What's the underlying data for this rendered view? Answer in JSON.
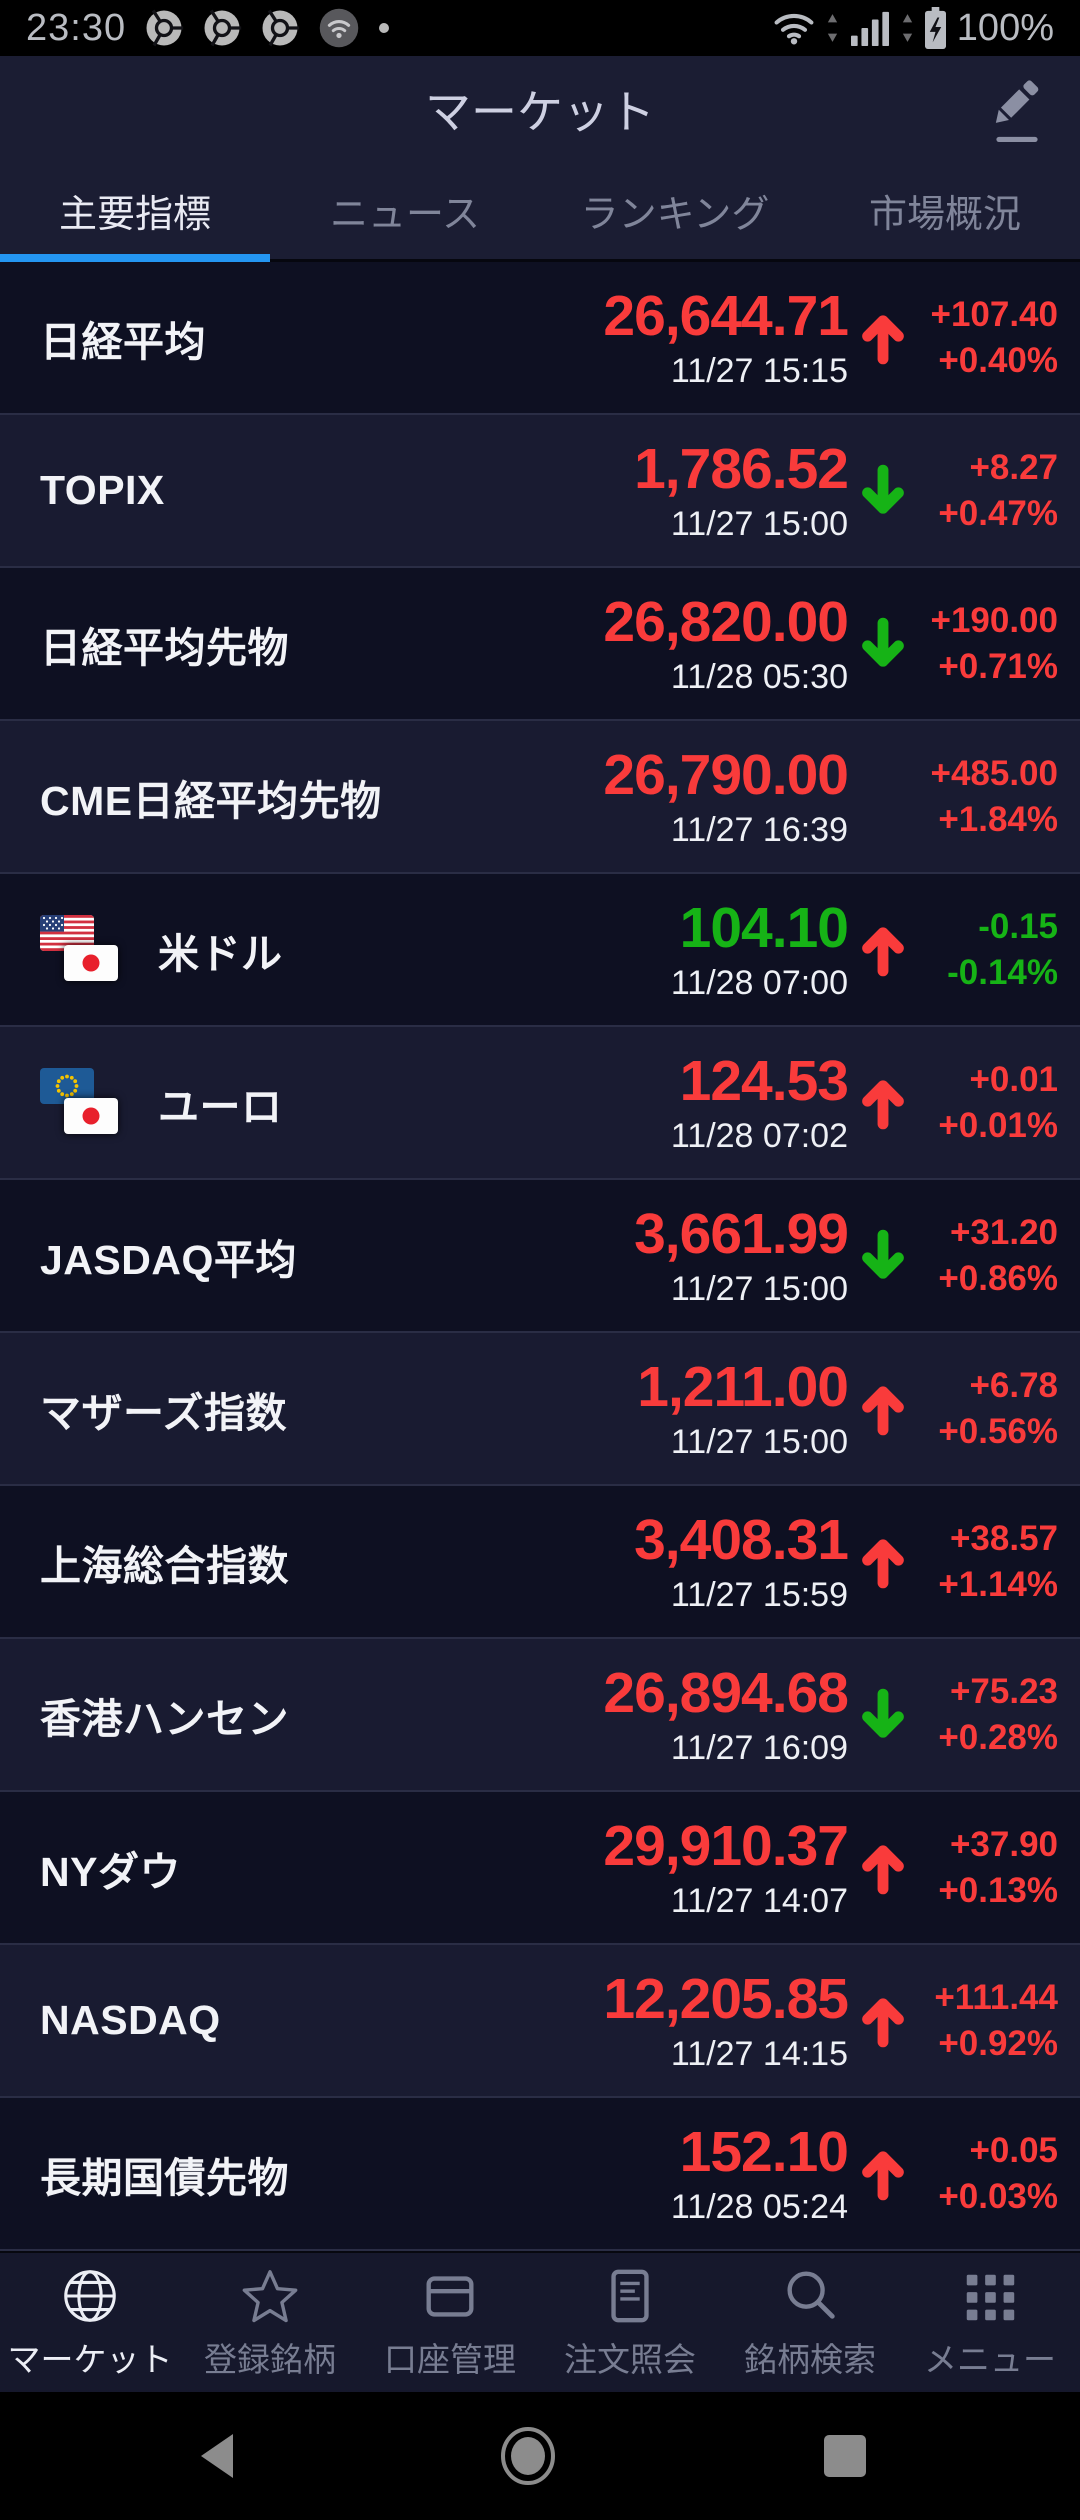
{
  "colors": {
    "accent_blue": "#2496f2",
    "up_red": "#f93b3b",
    "down_green": "#16b316",
    "row_odd_bg": "#0e1022",
    "row_even_bg": "#191b31",
    "header_bg": "#1b1d33"
  },
  "status_bar": {
    "time": "23:30",
    "battery_percent": "100%",
    "left_icons": [
      "chrome-icon",
      "chrome-icon",
      "chrome-icon",
      "wifi-circle-icon",
      "notification-dot"
    ],
    "right_icons": [
      "wifi-icon",
      "signal-bars-icon",
      "battery-charging-icon"
    ]
  },
  "header": {
    "title": "マーケット",
    "edit_icon": "pencil-icon"
  },
  "tabs": {
    "items": [
      {
        "label": "主要指標",
        "active": true
      },
      {
        "label": "ニュース",
        "active": false
      },
      {
        "label": "ランキング",
        "active": false
      },
      {
        "label": "市場概況",
        "active": false
      }
    ]
  },
  "rows": [
    {
      "label": "日経平均",
      "flags": null,
      "value": "26,644.71",
      "value_color": "red",
      "arrow": "up",
      "arrow_color": "red",
      "change": "+107.40",
      "change_pct": "+0.40%",
      "change_color": "red",
      "timestamp": "11/27 15:15"
    },
    {
      "label": "TOPIX",
      "flags": null,
      "value": "1,786.52",
      "value_color": "red",
      "arrow": "down",
      "arrow_color": "green",
      "change": "+8.27",
      "change_pct": "+0.47%",
      "change_color": "red",
      "timestamp": "11/27 15:00"
    },
    {
      "label": "日経平均先物",
      "flags": null,
      "value": "26,820.00",
      "value_color": "red",
      "arrow": "down",
      "arrow_color": "green",
      "change": "+190.00",
      "change_pct": "+0.71%",
      "change_color": "red",
      "timestamp": "11/28 05:30"
    },
    {
      "label": "CME日経平均先物",
      "flags": null,
      "value": "26,790.00",
      "value_color": "red",
      "arrow": "none",
      "arrow_color": "",
      "change": "+485.00",
      "change_pct": "+1.84%",
      "change_color": "red",
      "timestamp": "11/27 16:39"
    },
    {
      "label": "米ドル",
      "flags": [
        "us",
        "jp"
      ],
      "value": "104.10",
      "value_color": "green",
      "arrow": "up",
      "arrow_color": "red",
      "change": "-0.15",
      "change_pct": "-0.14%",
      "change_color": "green",
      "timestamp": "11/28 07:00"
    },
    {
      "label": "ユーロ",
      "flags": [
        "eu",
        "jp"
      ],
      "value": "124.53",
      "value_color": "red",
      "arrow": "up",
      "arrow_color": "red",
      "change": "+0.01",
      "change_pct": "+0.01%",
      "change_color": "red",
      "timestamp": "11/28 07:02"
    },
    {
      "label": "JASDAQ平均",
      "flags": null,
      "value": "3,661.99",
      "value_color": "red",
      "arrow": "down",
      "arrow_color": "green",
      "change": "+31.20",
      "change_pct": "+0.86%",
      "change_color": "red",
      "timestamp": "11/27 15:00"
    },
    {
      "label": "マザーズ指数",
      "flags": null,
      "value": "1,211.00",
      "value_color": "red",
      "arrow": "up",
      "arrow_color": "red",
      "change": "+6.78",
      "change_pct": "+0.56%",
      "change_color": "red",
      "timestamp": "11/27 15:00"
    },
    {
      "label": "上海総合指数",
      "flags": null,
      "value": "3,408.31",
      "value_color": "red",
      "arrow": "up",
      "arrow_color": "red",
      "change": "+38.57",
      "change_pct": "+1.14%",
      "change_color": "red",
      "timestamp": "11/27 15:59"
    },
    {
      "label": "香港ハンセン",
      "flags": null,
      "value": "26,894.68",
      "value_color": "red",
      "arrow": "down",
      "arrow_color": "green",
      "change": "+75.23",
      "change_pct": "+0.28%",
      "change_color": "red",
      "timestamp": "11/27 16:09"
    },
    {
      "label": "NYダウ",
      "flags": null,
      "value": "29,910.37",
      "value_color": "red",
      "arrow": "up",
      "arrow_color": "red",
      "change": "+37.90",
      "change_pct": "+0.13%",
      "change_color": "red",
      "timestamp": "11/27 14:07"
    },
    {
      "label": "NASDAQ",
      "flags": null,
      "value": "12,205.85",
      "value_color": "red",
      "arrow": "up",
      "arrow_color": "red",
      "change": "+111.44",
      "change_pct": "+0.92%",
      "change_color": "red",
      "timestamp": "11/27 14:15"
    },
    {
      "label": "長期国債先物",
      "flags": null,
      "value": "152.10",
      "value_color": "red",
      "arrow": "up",
      "arrow_color": "red",
      "change": "+0.05",
      "change_pct": "+0.03%",
      "change_color": "red",
      "timestamp": "11/28 05:24"
    }
  ],
  "bottom_nav": {
    "items": [
      {
        "label": "マーケット",
        "icon": "globe-icon",
        "active": true
      },
      {
        "label": "登録銘柄",
        "icon": "star-icon",
        "active": false
      },
      {
        "label": "口座管理",
        "icon": "card-icon",
        "active": false
      },
      {
        "label": "注文照会",
        "icon": "document-icon",
        "active": false
      },
      {
        "label": "銘柄検索",
        "icon": "search-icon",
        "active": false
      },
      {
        "label": "メニュー",
        "icon": "grid-icon",
        "active": false
      }
    ]
  },
  "android_nav": {
    "buttons": [
      "back",
      "home",
      "recents"
    ]
  }
}
